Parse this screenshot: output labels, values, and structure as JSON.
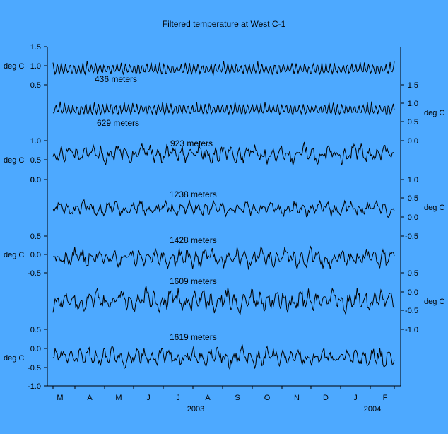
{
  "chart_data": {
    "type": "line",
    "title": "Filtered temperature at West C-1",
    "ylabel_unit": "deg C",
    "x_months": [
      "M",
      "A",
      "M",
      "J",
      "J",
      "A",
      "S",
      "O",
      "N",
      "D",
      "J",
      "F"
    ],
    "x_years": [
      "2003",
      "2004"
    ],
    "grid": false,
    "series": [
      {
        "name": "436 meters",
        "side": "left",
        "ticks": [
          "1.5",
          "1.0",
          "0.5"
        ],
        "tick_values": [
          1.5,
          1.0,
          0.5
        ],
        "ylim": [
          0.5,
          1.5
        ],
        "mean": 0.95,
        "amp": 0.26
      },
      {
        "name": "629 meters",
        "side": "right",
        "ticks": [
          "1.5",
          "1.0",
          "0.5"
        ],
        "tick_values": [
          1.5,
          1.0,
          0.5
        ],
        "ylim": [
          0.5,
          1.5
        ],
        "mean": 0.78,
        "amp": 0.26
      },
      {
        "name": "923 meters",
        "side": "left",
        "ticks": [
          "1.0",
          "0.5",
          "0.0"
        ],
        "tick_values": [
          1.0,
          0.5,
          0.0
        ],
        "ylim": [
          0.0,
          1.0
        ],
        "mean": 0.55,
        "amp": 0.28
      },
      {
        "name": "1238 meters",
        "side": "right",
        "ticks": [
          "0.0",
          "1.0",
          "0.5",
          "0.0"
        ],
        "tick_values": [
          0.0,
          1.0,
          0.5,
          0.0
        ],
        "ylim": [
          0.0,
          1.0
        ],
        "mean": 0.18,
        "amp": 0.22
      },
      {
        "name": "1428 meters",
        "side": "left",
        "ticks": [
          "0.0",
          "0.5",
          "0.0",
          "-0.5"
        ],
        "tick_values": [
          0.0,
          0.5,
          0.0,
          -0.5
        ],
        "ylim": [
          -0.5,
          0.5
        ],
        "mean": -0.1,
        "amp": 0.3
      },
      {
        "name": "1609 meters",
        "side": "right",
        "ticks": [
          "-0.5",
          "0.5",
          "0.0",
          "-0.5",
          "-1.0"
        ],
        "tick_values": [
          -0.5,
          0.5,
          0.0,
          -0.5,
          -1.0
        ],
        "ylim": [
          -1.0,
          0.5
        ],
        "mean": -0.3,
        "amp": 0.35
      },
      {
        "name": "1619 meters",
        "side": "left",
        "ticks": [
          "0.5",
          "0.0",
          "-0.5",
          "-1.0"
        ],
        "tick_values": [
          0.5,
          0.0,
          -0.5,
          -1.0
        ],
        "ylim": [
          -1.0,
          0.5
        ],
        "mean": -0.28,
        "amp": 0.3
      }
    ]
  }
}
